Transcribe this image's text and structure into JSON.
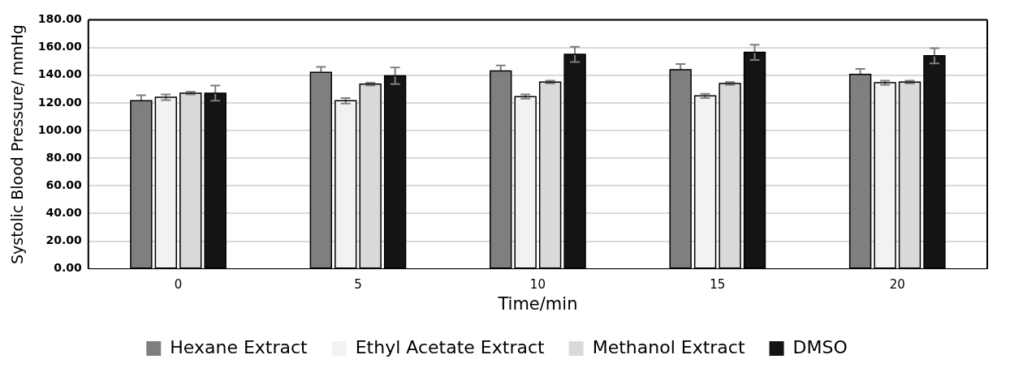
{
  "chart_data": {
    "type": "bar",
    "xlabel": "Time/min",
    "ylabel": "Systolic Blood Pressure/ mmHg",
    "categories": [
      "0",
      "5",
      "10",
      "15",
      "20"
    ],
    "series": [
      {
        "name": "Hexane Extract",
        "color": "#7f7f7f",
        "values": [
          121.5,
          142,
          143,
          144,
          140.5
        ],
        "errors": [
          4,
          4,
          4,
          4,
          4
        ]
      },
      {
        "name": "Ethyl Acetate Extract",
        "color": "#f2f2f2",
        "values": [
          124,
          121.5,
          124.5,
          125,
          134.5
        ],
        "errors": [
          2,
          2,
          1.5,
          1.5,
          1.5
        ]
      },
      {
        "name": "Methanol Extract",
        "color": "#d9d9d9",
        "values": [
          127,
          133.5,
          135,
          134,
          135
        ],
        "errors": [
          1,
          1,
          1,
          1,
          1
        ]
      },
      {
        "name": "DMSO",
        "color": "#141414",
        "values": [
          127,
          139.5,
          155,
          156.5,
          154
        ],
        "errors": [
          5.5,
          6,
          5.5,
          5.5,
          5.5
        ]
      }
    ],
    "ylim": [
      0,
      180
    ],
    "yticks": [
      {
        "value": 0,
        "label": "0.00"
      },
      {
        "value": 20,
        "label": "20.00"
      },
      {
        "value": 40,
        "label": "40.00"
      },
      {
        "value": 60,
        "label": "60.00"
      },
      {
        "value": 80,
        "label": "80.00"
      },
      {
        "value": 100,
        "label": "100.00"
      },
      {
        "value": 120,
        "label": "120.00"
      },
      {
        "value": 140,
        "label": "140.00"
      },
      {
        "value": 160,
        "label": "160.00"
      },
      {
        "value": 180,
        "label": "180.00"
      }
    ],
    "grid": "y",
    "legend": "bottom"
  }
}
